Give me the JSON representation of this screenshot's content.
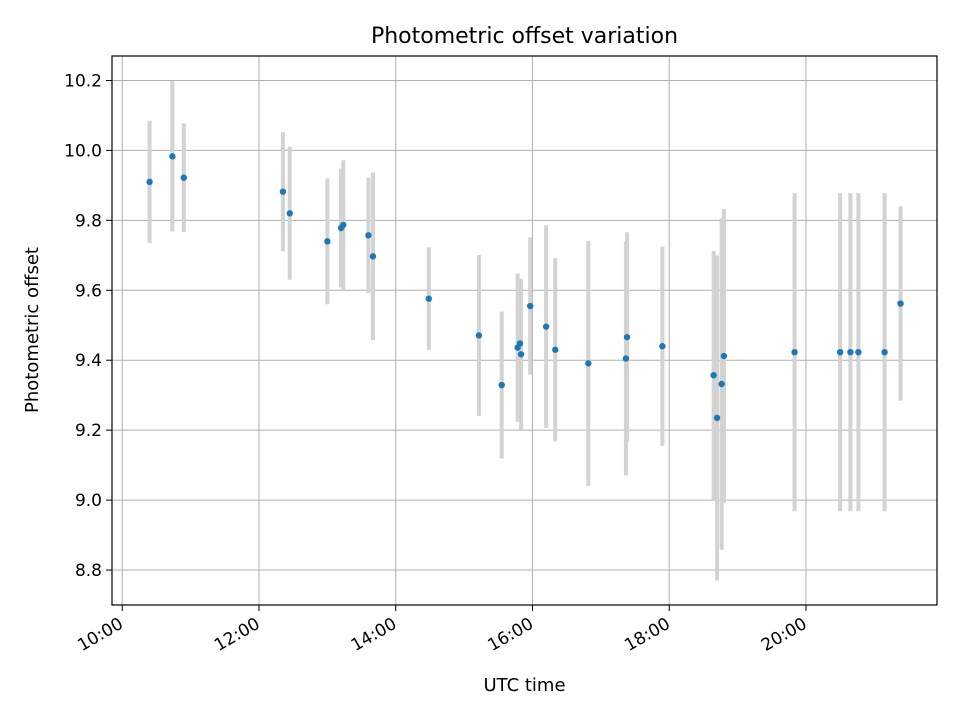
{
  "chart_data": {
    "type": "scatter",
    "title": "Photometric offset variation",
    "xlabel": "UTC time",
    "ylabel": "Photometric offset",
    "xlim": [
      "09:51",
      "21:55"
    ],
    "ylim": [
      8.7,
      10.27
    ],
    "grid": true,
    "colors": {
      "points": "#1f77b4",
      "errorbars": "#d3d3d3",
      "grid": "#b0b0b0"
    },
    "x_ticks": [
      "10:00",
      "12:00",
      "14:00",
      "16:00",
      "18:00",
      "20:00"
    ],
    "y_ticks": [
      "8.8",
      "9.0",
      "9.2",
      "9.4",
      "9.6",
      "9.8",
      "10.0",
      "10.2"
    ],
    "points": [
      {
        "x": "10:24",
        "y": 9.91,
        "err": 0.175
      },
      {
        "x": "10:44",
        "y": 9.983,
        "err": 0.215
      },
      {
        "x": "10:54",
        "y": 9.922,
        "err": 0.155
      },
      {
        "x": "12:21",
        "y": 9.882,
        "err": 0.17
      },
      {
        "x": "12:27",
        "y": 9.82,
        "err": 0.19
      },
      {
        "x": "13:00",
        "y": 9.74,
        "err": 0.18
      },
      {
        "x": "13:12",
        "y": 9.778,
        "err": 0.17
      },
      {
        "x": "13:14",
        "y": 9.787,
        "err": 0.185
      },
      {
        "x": "13:36",
        "y": 9.757,
        "err": 0.165
      },
      {
        "x": "13:40",
        "y": 9.697,
        "err": 0.24
      },
      {
        "x": "14:29",
        "y": 9.576,
        "err": 0.147
      },
      {
        "x": "15:13",
        "y": 9.471,
        "err": 0.23
      },
      {
        "x": "15:33",
        "y": 9.329,
        "err": 0.21
      },
      {
        "x": "15:47",
        "y": 9.436,
        "err": 0.212
      },
      {
        "x": "15:49",
        "y": 9.448,
        "err": 0.185
      },
      {
        "x": "15:50",
        "y": 9.417,
        "err": 0.215
      },
      {
        "x": "15:58",
        "y": 9.555,
        "err": 0.196
      },
      {
        "x": "16:12",
        "y": 9.496,
        "err": 0.29
      },
      {
        "x": "16:20",
        "y": 9.43,
        "err": 0.262
      },
      {
        "x": "16:49",
        "y": 9.391,
        "err": 0.35
      },
      {
        "x": "17:22",
        "y": 9.405,
        "err": 0.335
      },
      {
        "x": "17:23",
        "y": 9.466,
        "err": 0.3
      },
      {
        "x": "17:54",
        "y": 9.44,
        "err": 0.285
      },
      {
        "x": "18:39",
        "y": 9.357,
        "err": 0.355
      },
      {
        "x": "18:42",
        "y": 9.235,
        "err": 0.465
      },
      {
        "x": "18:46",
        "y": 9.332,
        "err": 0.474
      },
      {
        "x": "18:48",
        "y": 9.412,
        "err": 0.42
      },
      {
        "x": "19:50",
        "y": 9.423,
        "err": 0.455
      },
      {
        "x": "20:30",
        "y": 9.423,
        "err": 0.455
      },
      {
        "x": "20:39",
        "y": 9.423,
        "err": 0.455
      },
      {
        "x": "20:46",
        "y": 9.423,
        "err": 0.455
      },
      {
        "x": "21:09",
        "y": 9.423,
        "err": 0.455
      },
      {
        "x": "21:23",
        "y": 9.562,
        "err": 0.278
      }
    ]
  }
}
